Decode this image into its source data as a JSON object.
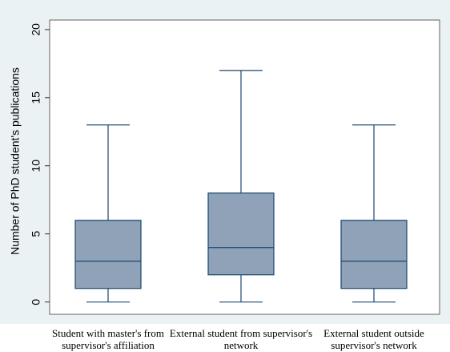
{
  "chart_data": {
    "type": "box",
    "y_label": "Number of PhD student's publications",
    "categories": [
      "Student with master's from supervisor's affiliation",
      "External student from supervisor's network",
      "External student outside supervisor's network"
    ],
    "min": [
      0,
      0,
      0
    ],
    "q1": [
      1,
      2,
      1
    ],
    "median": [
      3,
      4,
      3
    ],
    "q3": [
      6,
      8,
      6
    ],
    "max": [
      13,
      17,
      13
    ],
    "color": "#8fa2b8",
    "edge_color": "#1a476f",
    "ylim": [
      -0.9,
      20.7
    ],
    "yticks": [
      0,
      5,
      10,
      15,
      20
    ],
    "grid": false
  }
}
